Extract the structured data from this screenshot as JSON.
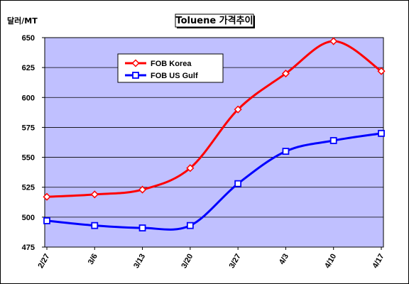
{
  "chart_data": {
    "type": "line",
    "title": "Toluene 가격추이",
    "ylabel": "달러/MT",
    "xlabel": "",
    "categories": [
      "2/27",
      "3/6",
      "3/13",
      "3/20",
      "3/27",
      "4/3",
      "4/10",
      "4/17"
    ],
    "ylim": [
      475,
      650
    ],
    "yticks": [
      475,
      500,
      525,
      550,
      575,
      600,
      625,
      650
    ],
    "grid": true,
    "legend_position": "top-left",
    "series": [
      {
        "name": "FOB Korea",
        "color": "#ff0000",
        "marker": "diamond",
        "values": [
          517,
          519,
          523,
          541,
          590,
          620,
          647,
          622
        ]
      },
      {
        "name": "FOB US Gulf",
        "color": "#0000ff",
        "marker": "square",
        "values": [
          497,
          493,
          491,
          493,
          528,
          555,
          564,
          570
        ]
      }
    ]
  },
  "colors": {
    "plot_background": "#c0c0ff",
    "gridline": "#000000",
    "frame": "#000000"
  }
}
